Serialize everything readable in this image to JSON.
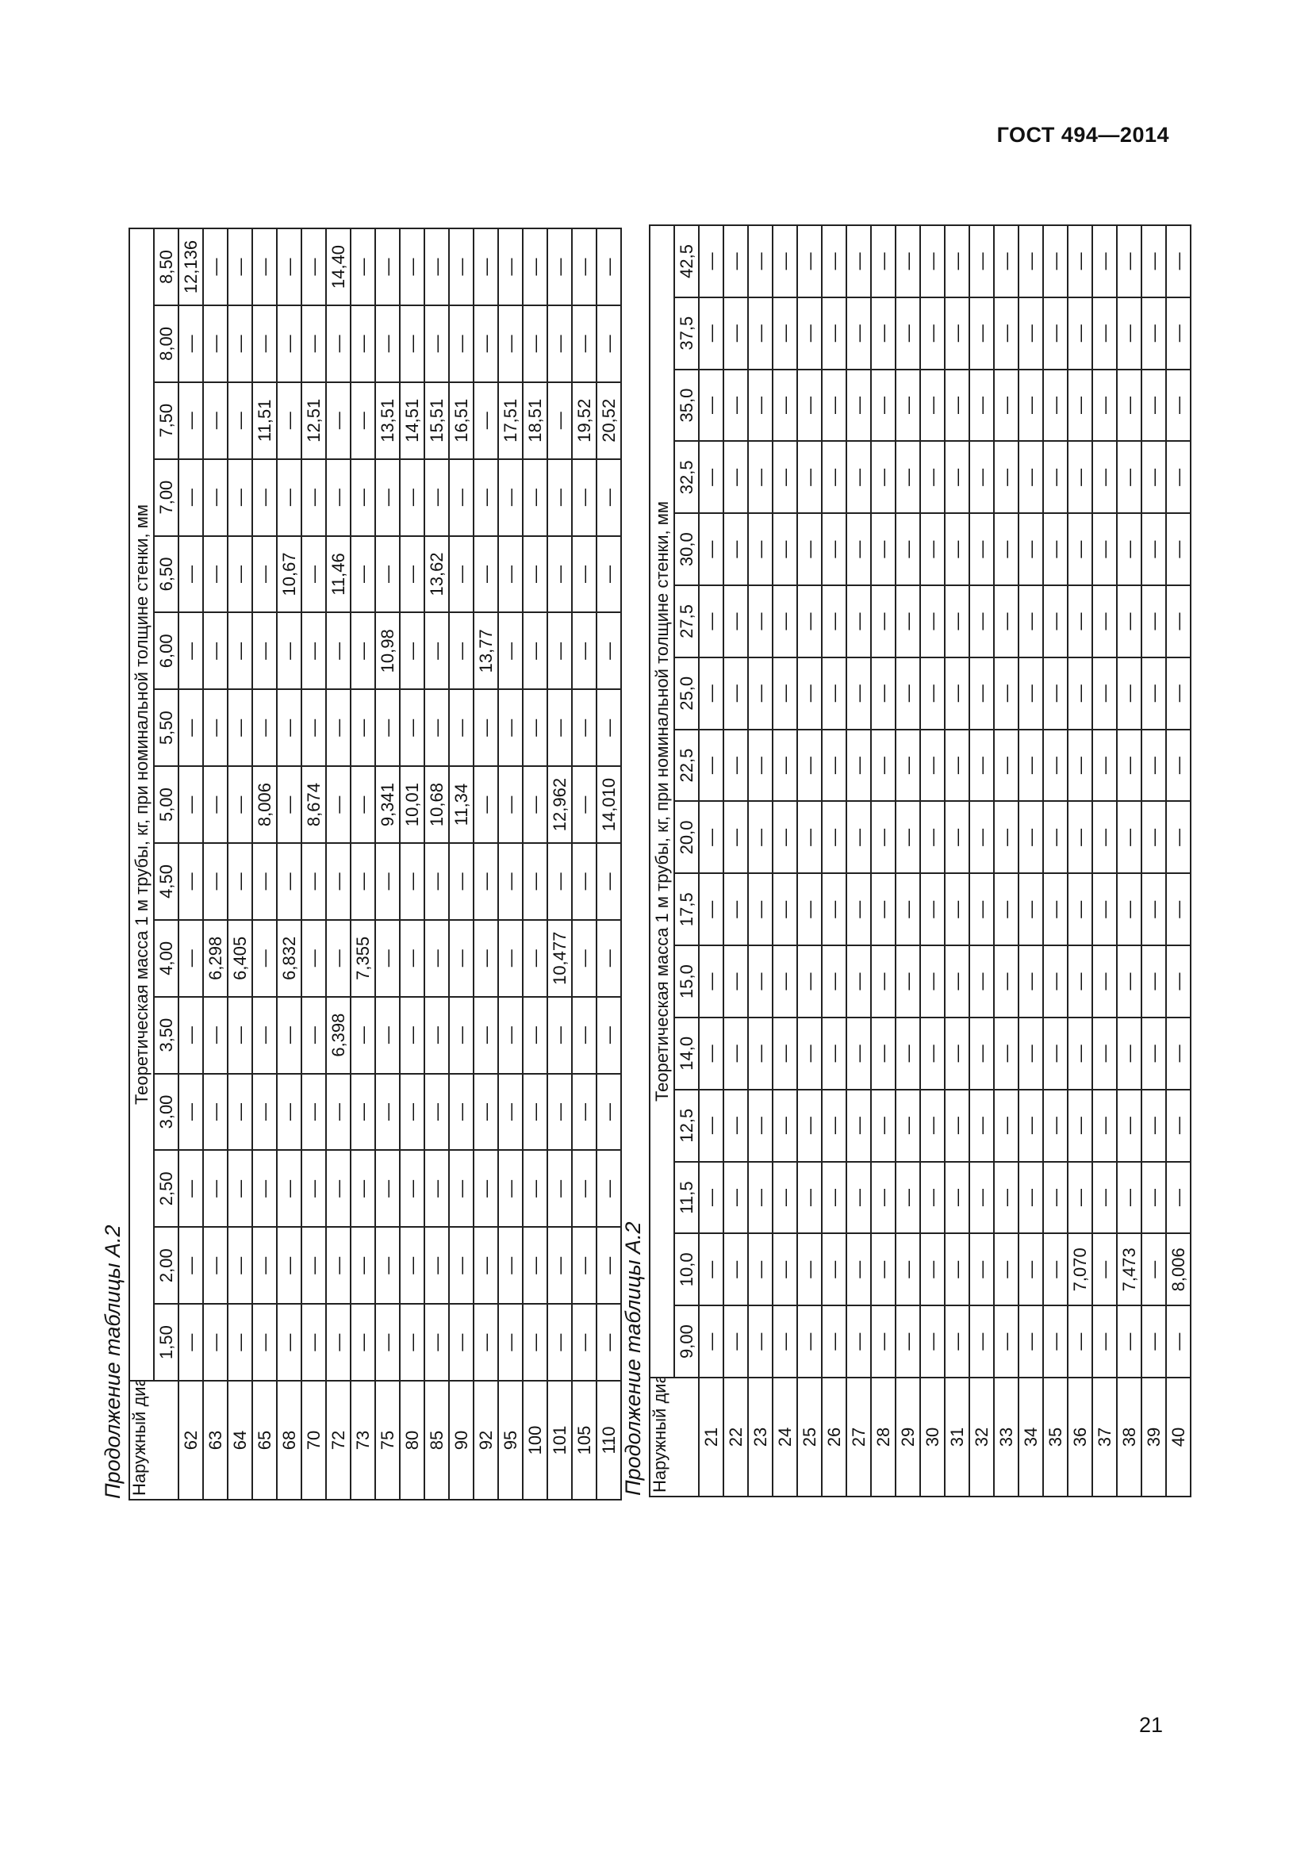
{
  "header": {
    "doc_code": "ГОСТ 494—2014"
  },
  "footer": {
    "page_number": "21"
  },
  "table1": {
    "caption": "Продолжение таблицы А.2",
    "diameter_header": "Наружный диаметр, мм",
    "group_header": "Теоретическая масса 1 м трубы, кг, при номинальной толщине стенки, мм",
    "columns": [
      "1,50",
      "2,00",
      "2,50",
      "3,00",
      "3,50",
      "4,00",
      "4,50",
      "5,00",
      "5,50",
      "6,00",
      "6,50",
      "7,00",
      "7,50",
      "8,00",
      "8,50"
    ],
    "rows": [
      {
        "d": "62",
        "v": [
          "—",
          "—",
          "—",
          "—",
          "—",
          "—",
          "—",
          "—",
          "—",
          "—",
          "—",
          "—",
          "—",
          "—",
          "12,136"
        ]
      },
      {
        "d": "63",
        "v": [
          "—",
          "—",
          "—",
          "—",
          "—",
          "6,298",
          "—",
          "—",
          "—",
          "—",
          "—",
          "—",
          "—",
          "—",
          "—"
        ]
      },
      {
        "d": "64",
        "v": [
          "—",
          "—",
          "—",
          "—",
          "—",
          "6,405",
          "—",
          "—",
          "—",
          "—",
          "—",
          "—",
          "—",
          "—",
          "—"
        ]
      },
      {
        "d": "65",
        "v": [
          "—",
          "—",
          "—",
          "—",
          "—",
          "—",
          "—",
          "8,006",
          "—",
          "—",
          "—",
          "—",
          "11,51",
          "—",
          "—"
        ]
      },
      {
        "d": "68",
        "v": [
          "—",
          "—",
          "—",
          "—",
          "—",
          "6,832",
          "—",
          "—",
          "—",
          "—",
          "10,67",
          "—",
          "—",
          "—",
          "—"
        ]
      },
      {
        "d": "70",
        "v": [
          "—",
          "—",
          "—",
          "—",
          "—",
          "—",
          "—",
          "8,674",
          "—",
          "—",
          "—",
          "—",
          "12,51",
          "—",
          "—"
        ]
      },
      {
        "d": "72",
        "v": [
          "—",
          "—",
          "—",
          "—",
          "6,398",
          "—",
          "—",
          "—",
          "—",
          "—",
          "11,46",
          "—",
          "—",
          "—",
          "14,40"
        ]
      },
      {
        "d": "73",
        "v": [
          "—",
          "—",
          "—",
          "—",
          "—",
          "7,355",
          "—",
          "—",
          "—",
          "—",
          "—",
          "—",
          "—",
          "—",
          "—"
        ]
      },
      {
        "d": "75",
        "v": [
          "—",
          "—",
          "—",
          "—",
          "—",
          "—",
          "—",
          "9,341",
          "—",
          "10,98",
          "—",
          "—",
          "13,51",
          "—",
          "—"
        ]
      },
      {
        "d": "80",
        "v": [
          "—",
          "—",
          "—",
          "—",
          "—",
          "—",
          "—",
          "10,01",
          "—",
          "—",
          "—",
          "—",
          "14,51",
          "—",
          "—"
        ]
      },
      {
        "d": "85",
        "v": [
          "—",
          "—",
          "—",
          "—",
          "—",
          "—",
          "—",
          "10,68",
          "—",
          "—",
          "13,62",
          "—",
          "15,51",
          "—",
          "—"
        ]
      },
      {
        "d": "90",
        "v": [
          "—",
          "—",
          "—",
          "—",
          "—",
          "—",
          "—",
          "11,34",
          "—",
          "—",
          "—",
          "—",
          "16,51",
          "—",
          "—"
        ]
      },
      {
        "d": "92",
        "v": [
          "—",
          "—",
          "—",
          "—",
          "—",
          "—",
          "—",
          "—",
          "—",
          "13,77",
          "—",
          "—",
          "—",
          "—",
          "—"
        ]
      },
      {
        "d": "95",
        "v": [
          "—",
          "—",
          "—",
          "—",
          "—",
          "—",
          "—",
          "—",
          "—",
          "—",
          "—",
          "—",
          "17,51",
          "—",
          "—"
        ]
      },
      {
        "d": "100",
        "v": [
          "—",
          "—",
          "—",
          "—",
          "—",
          "—",
          "—",
          "—",
          "—",
          "—",
          "—",
          "—",
          "18,51",
          "—",
          "—"
        ]
      },
      {
        "d": "101",
        "v": [
          "—",
          "—",
          "—",
          "—",
          "—",
          "10,477",
          "—",
          "12,962",
          "—",
          "—",
          "—",
          "—",
          "—",
          "—",
          "—"
        ]
      },
      {
        "d": "105",
        "v": [
          "—",
          "—",
          "—",
          "—",
          "—",
          "—",
          "—",
          "—",
          "—",
          "—",
          "—",
          "—",
          "19,52",
          "—",
          "—"
        ]
      },
      {
        "d": "110",
        "v": [
          "—",
          "—",
          "—",
          "—",
          "—",
          "—",
          "—",
          "14,010",
          "—",
          "—",
          "—",
          "—",
          "20,52",
          "—",
          "—"
        ]
      }
    ]
  },
  "table2": {
    "caption": "Продолжение таблицы А.2",
    "diameter_header": "Наружный диаметр, мм",
    "group_header": "Теоретическая масса 1 м трубы, кг, при номинальной толщине стенки, мм",
    "columns": [
      "9,00",
      "10,0",
      "11,5",
      "12,5",
      "14,0",
      "15,0",
      "17,5",
      "20,0",
      "22,5",
      "25,0",
      "27,5",
      "30,0",
      "32,5",
      "35,0",
      "37,5",
      "42,5"
    ],
    "rows": [
      {
        "d": "21",
        "v": [
          "—",
          "—",
          "—",
          "—",
          "—",
          "—",
          "—",
          "—",
          "—",
          "—",
          "—",
          "—",
          "—",
          "—",
          "—",
          "—"
        ]
      },
      {
        "d": "22",
        "v": [
          "—",
          "—",
          "—",
          "—",
          "—",
          "—",
          "—",
          "—",
          "—",
          "—",
          "—",
          "—",
          "—",
          "—",
          "—",
          "—"
        ]
      },
      {
        "d": "23",
        "v": [
          "—",
          "—",
          "—",
          "—",
          "—",
          "—",
          "—",
          "—",
          "—",
          "—",
          "—",
          "—",
          "—",
          "—",
          "—",
          "—"
        ]
      },
      {
        "d": "24",
        "v": [
          "—",
          "—",
          "—",
          "—",
          "—",
          "—",
          "—",
          "—",
          "—",
          "—",
          "—",
          "—",
          "—",
          "—",
          "—",
          "—"
        ]
      },
      {
        "d": "25",
        "v": [
          "—",
          "—",
          "—",
          "—",
          "—",
          "—",
          "—",
          "—",
          "—",
          "—",
          "—",
          "—",
          "—",
          "—",
          "—",
          "—"
        ]
      },
      {
        "d": "26",
        "v": [
          "—",
          "—",
          "—",
          "—",
          "—",
          "—",
          "—",
          "—",
          "—",
          "—",
          "—",
          "—",
          "—",
          "—",
          "—",
          "—"
        ]
      },
      {
        "d": "27",
        "v": [
          "—",
          "—",
          "—",
          "—",
          "—",
          "—",
          "—",
          "—",
          "—",
          "—",
          "—",
          "—",
          "—",
          "—",
          "—",
          "—"
        ]
      },
      {
        "d": "28",
        "v": [
          "—",
          "—",
          "—",
          "—",
          "—",
          "—",
          "—",
          "—",
          "—",
          "—",
          "—",
          "—",
          "—",
          "—",
          "—",
          "—"
        ]
      },
      {
        "d": "29",
        "v": [
          "—",
          "—",
          "—",
          "—",
          "—",
          "—",
          "—",
          "—",
          "—",
          "—",
          "—",
          "—",
          "—",
          "—",
          "—",
          "—"
        ]
      },
      {
        "d": "30",
        "v": [
          "—",
          "—",
          "—",
          "—",
          "—",
          "—",
          "—",
          "—",
          "—",
          "—",
          "—",
          "—",
          "—",
          "—",
          "—",
          "—"
        ]
      },
      {
        "d": "31",
        "v": [
          "—",
          "—",
          "—",
          "—",
          "—",
          "—",
          "—",
          "—",
          "—",
          "—",
          "—",
          "—",
          "—",
          "—",
          "—",
          "—"
        ]
      },
      {
        "d": "32",
        "v": [
          "—",
          "—",
          "—",
          "—",
          "—",
          "—",
          "—",
          "—",
          "—",
          "—",
          "—",
          "—",
          "—",
          "—",
          "—",
          "—"
        ]
      },
      {
        "d": "33",
        "v": [
          "—",
          "—",
          "—",
          "—",
          "—",
          "—",
          "—",
          "—",
          "—",
          "—",
          "—",
          "—",
          "—",
          "—",
          "—",
          "—"
        ]
      },
      {
        "d": "34",
        "v": [
          "—",
          "—",
          "—",
          "—",
          "—",
          "—",
          "—",
          "—",
          "—",
          "—",
          "—",
          "—",
          "—",
          "—",
          "—",
          "—"
        ]
      },
      {
        "d": "35",
        "v": [
          "—",
          "—",
          "—",
          "—",
          "—",
          "—",
          "—",
          "—",
          "—",
          "—",
          "—",
          "—",
          "—",
          "—",
          "—",
          "—"
        ]
      },
      {
        "d": "36",
        "v": [
          "—",
          "7,070",
          "—",
          "—",
          "—",
          "—",
          "—",
          "—",
          "—",
          "—",
          "—",
          "—",
          "—",
          "—",
          "—",
          "—"
        ]
      },
      {
        "d": "37",
        "v": [
          "—",
          "—",
          "—",
          "—",
          "—",
          "—",
          "—",
          "—",
          "—",
          "—",
          "—",
          "—",
          "—",
          "—",
          "—",
          "—"
        ]
      },
      {
        "d": "38",
        "v": [
          "—",
          "7,473",
          "—",
          "—",
          "—",
          "—",
          "—",
          "—",
          "—",
          "—",
          "—",
          "—",
          "—",
          "—",
          "—",
          "—"
        ]
      },
      {
        "d": "39",
        "v": [
          "—",
          "—",
          "—",
          "—",
          "—",
          "—",
          "—",
          "—",
          "—",
          "—",
          "—",
          "—",
          "—",
          "—",
          "—",
          "—"
        ]
      },
      {
        "d": "40",
        "v": [
          "—",
          "8,006",
          "—",
          "—",
          "—",
          "—",
          "—",
          "—",
          "—",
          "—",
          "—",
          "—",
          "—",
          "—",
          "—",
          "—"
        ]
      }
    ]
  }
}
